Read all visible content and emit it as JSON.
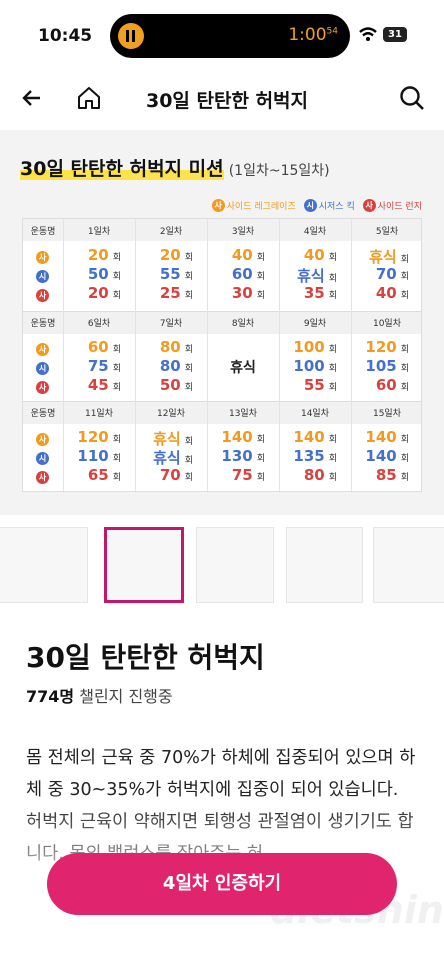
{
  "status_bar": {
    "time": "10:45",
    "timer": "1:00",
    "timer_seconds": "54",
    "battery": "31"
  },
  "nav": {
    "title": "30일 탄탄한 허벅지"
  },
  "mission": {
    "title": "30일 탄탄한 허벅지 미션",
    "subtitle": "(1일차~15일차)",
    "legend": [
      {
        "icon": "사",
        "name": "사이드 레그레이즈",
        "color": "#f39a1e"
      },
      {
        "icon": "시",
        "name": "시저스 킥",
        "color": "#4470cc"
      },
      {
        "icon": "사",
        "name": "사이드 런지",
        "color": "#d9413f"
      }
    ],
    "header": "운동명",
    "unit": "회",
    "blocks": [
      {
        "days": [
          "1일차",
          "2일차",
          "3일차",
          "4일차",
          "5일차"
        ],
        "cells": [
          [
            20,
            50,
            20
          ],
          [
            20,
            55,
            25
          ],
          [
            40,
            60,
            30
          ],
          [
            40,
            "휴식",
            35
          ],
          [
            "휴식",
            70,
            40
          ]
        ]
      },
      {
        "days": [
          "6일차",
          "7일차",
          "8일차",
          "9일차",
          "10일차"
        ],
        "cells": [
          [
            60,
            75,
            45
          ],
          [
            80,
            80,
            50
          ],
          "휴식",
          [
            100,
            100,
            55
          ],
          [
            120,
            105,
            60
          ]
        ]
      },
      {
        "days": [
          "11일차",
          "12일차",
          "13일차",
          "14일차",
          "15일차"
        ],
        "cells": [
          [
            120,
            110,
            65
          ],
          [
            "휴식",
            "휴식",
            70
          ],
          [
            140,
            130,
            75
          ],
          [
            140,
            135,
            80
          ],
          [
            140,
            140,
            85
          ]
        ]
      }
    ]
  },
  "product": {
    "title": "30일 탄탄한 허벅지",
    "participants": "774명",
    "participants_suffix": "챌린지 진행중",
    "description": "몸 전체의 근육 중 70%가 하체에 집중되어 있으며 하체 중 30~35%가 허벅지에 집중이 되어 있습니다. 허벅지 근육이 약해지면 퇴행성 관절염이 생기기도 합니다. 몸의 밸런스를 잡아주는 허"
  },
  "button": "4일차 인증하기",
  "watermark": "dietshin.com"
}
